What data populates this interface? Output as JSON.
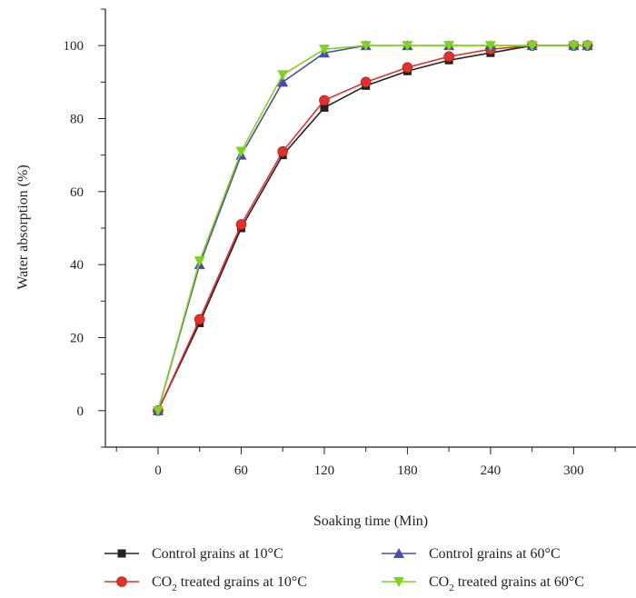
{
  "chart_data": {
    "type": "line",
    "xlabel": "Soaking time (Min)",
    "ylabel": "Water absorption (%)",
    "xlim": [
      -38,
      345
    ],
    "ylim": [
      -10,
      110
    ],
    "xticks": [
      0,
      60,
      120,
      180,
      240,
      300
    ],
    "xtick_labels": [
      "0",
      "60",
      "120",
      "180",
      "240",
      "300"
    ],
    "yticks": [
      0,
      20,
      40,
      60,
      80,
      100
    ],
    "ytick_labels": [
      "0",
      "20",
      "40",
      "60",
      "80",
      "100"
    ],
    "grid": false,
    "legend_position": "bottom",
    "series": [
      {
        "name": "Control grains at 10°C",
        "name_main": "Control grains at 10°C",
        "name_sub": "",
        "name_rest": "",
        "color": "#222222",
        "marker": "square",
        "x": [
          0,
          30,
          60,
          90,
          120,
          150,
          180,
          210,
          240,
          270,
          300,
          310
        ],
        "y": [
          0,
          24,
          50,
          70,
          83,
          89,
          93,
          96,
          98,
          100,
          100,
          100
        ]
      },
      {
        "name": "CO2 treated grains at 10°C",
        "name_main": "CO",
        "name_sub": "2",
        "name_rest": " treated grains at 10°C",
        "color": "#e0322d",
        "marker": "circle",
        "x": [
          0,
          30,
          60,
          90,
          120,
          150,
          180,
          210,
          240,
          270,
          300,
          310
        ],
        "y": [
          0,
          25,
          51,
          71,
          85,
          90,
          94,
          97,
          99,
          100,
          100,
          100
        ]
      },
      {
        "name": "Control grains at 60°C",
        "name_main": "Control grains at 60°C",
        "name_sub": "",
        "name_rest": "",
        "color": "#4a4ea8",
        "marker": "triangle-up",
        "x": [
          0,
          30,
          60,
          90,
          120,
          150,
          180,
          210,
          240,
          270,
          300,
          310
        ],
        "y": [
          0,
          40,
          70,
          90,
          98,
          100,
          100,
          100,
          100,
          100,
          100,
          100
        ]
      },
      {
        "name": "CO2 treated grains at 60°C",
        "name_main": "CO",
        "name_sub": "2",
        "name_rest": " treated grains at 60°C",
        "color": "#7dd31e",
        "marker": "triangle-down",
        "x": [
          0,
          30,
          60,
          90,
          120,
          150,
          180,
          210,
          240,
          270,
          300,
          310
        ],
        "y": [
          0,
          41,
          71,
          92,
          99,
          100,
          100,
          100,
          100,
          100,
          100,
          100
        ]
      }
    ]
  }
}
